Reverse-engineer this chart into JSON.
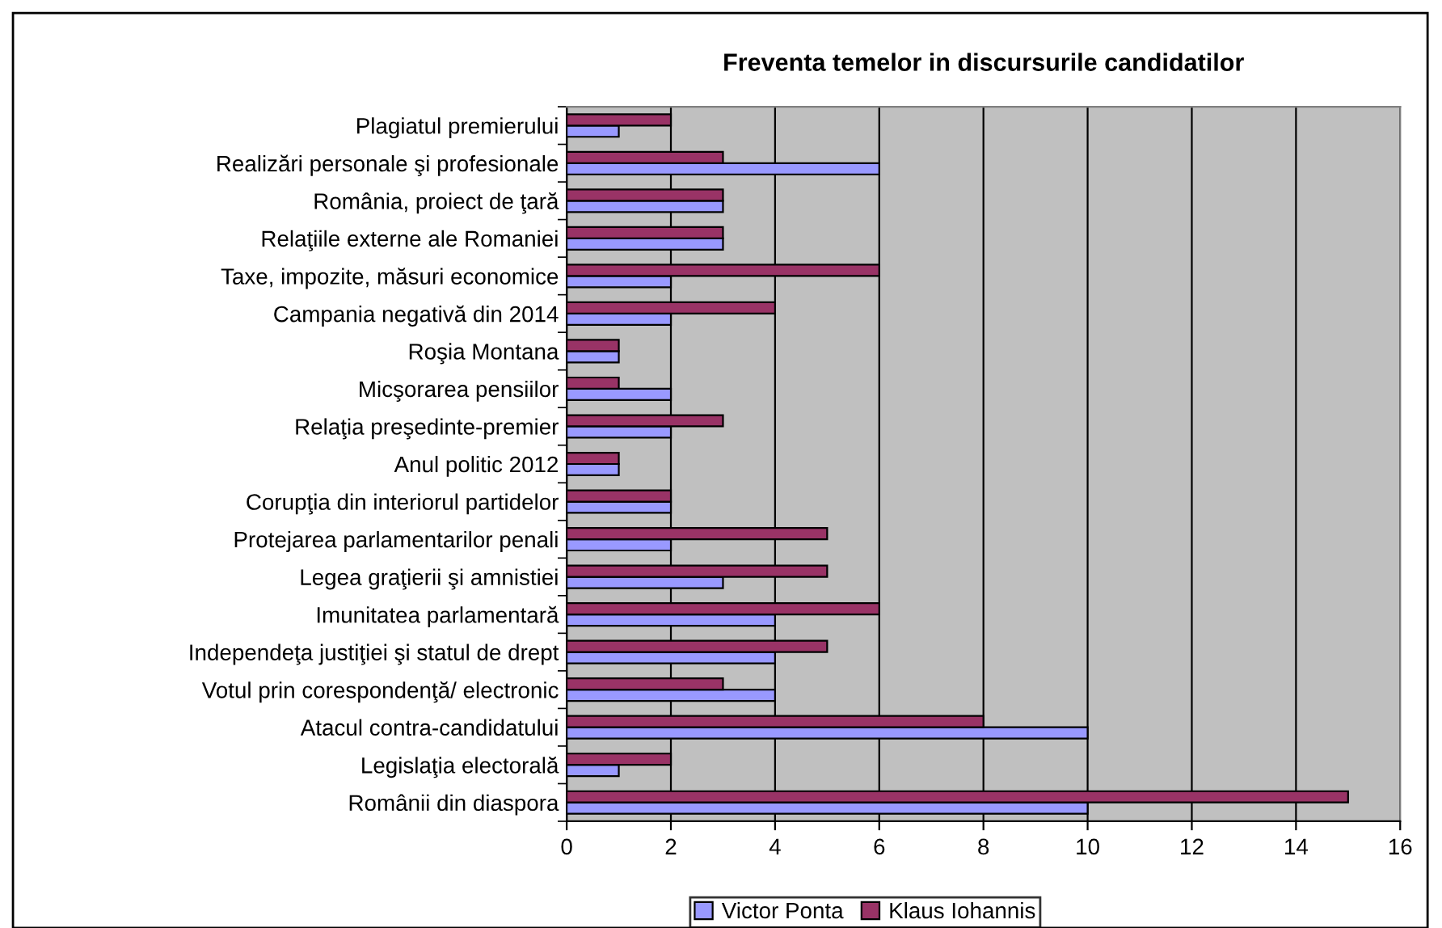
{
  "chart_data": {
    "type": "bar",
    "orientation": "horizontal",
    "title": "Freventa temelor in discursurile candidatilor",
    "categories": [
      "Plagiatul premierului",
      "Realizări personale şi profesionale",
      "România, proiect de ţară",
      "Relaţiile externe ale Romaniei",
      "Taxe, impozite, măsuri economice",
      "Campania negativă din 2014",
      "Roşia Montana",
      "Micşorarea pensiilor",
      "Relaţia preşedinte-premier",
      "Anul politic 2012",
      "Corupţia din interiorul partidelor",
      "Protejarea parlamentarilor penali",
      "Legea graţierii şi amnistiei",
      "Imunitatea parlamentară",
      "Independeţa justiţiei şi statul de drept",
      "Votul prin corespondenţă/ electronic",
      "Atacul contra-candidatului",
      "Legislaţia electorală",
      "Românii din diaspora"
    ],
    "series": [
      {
        "name": "Victor Ponta",
        "color": "#9999ff",
        "values": [
          1,
          6,
          3,
          3,
          2,
          2,
          1,
          2,
          2,
          1,
          2,
          2,
          3,
          4,
          4,
          4,
          10,
          1,
          10
        ]
      },
      {
        "name": "Klaus Iohannis",
        "color": "#993366",
        "values": [
          2,
          3,
          3,
          3,
          6,
          4,
          1,
          1,
          3,
          1,
          2,
          5,
          5,
          6,
          5,
          3,
          8,
          2,
          15
        ]
      }
    ],
    "xlim": [
      0,
      16
    ],
    "xticks": [
      0,
      2,
      4,
      6,
      8,
      10,
      12,
      14,
      16
    ],
    "grid": "x",
    "legend": "bottom"
  }
}
